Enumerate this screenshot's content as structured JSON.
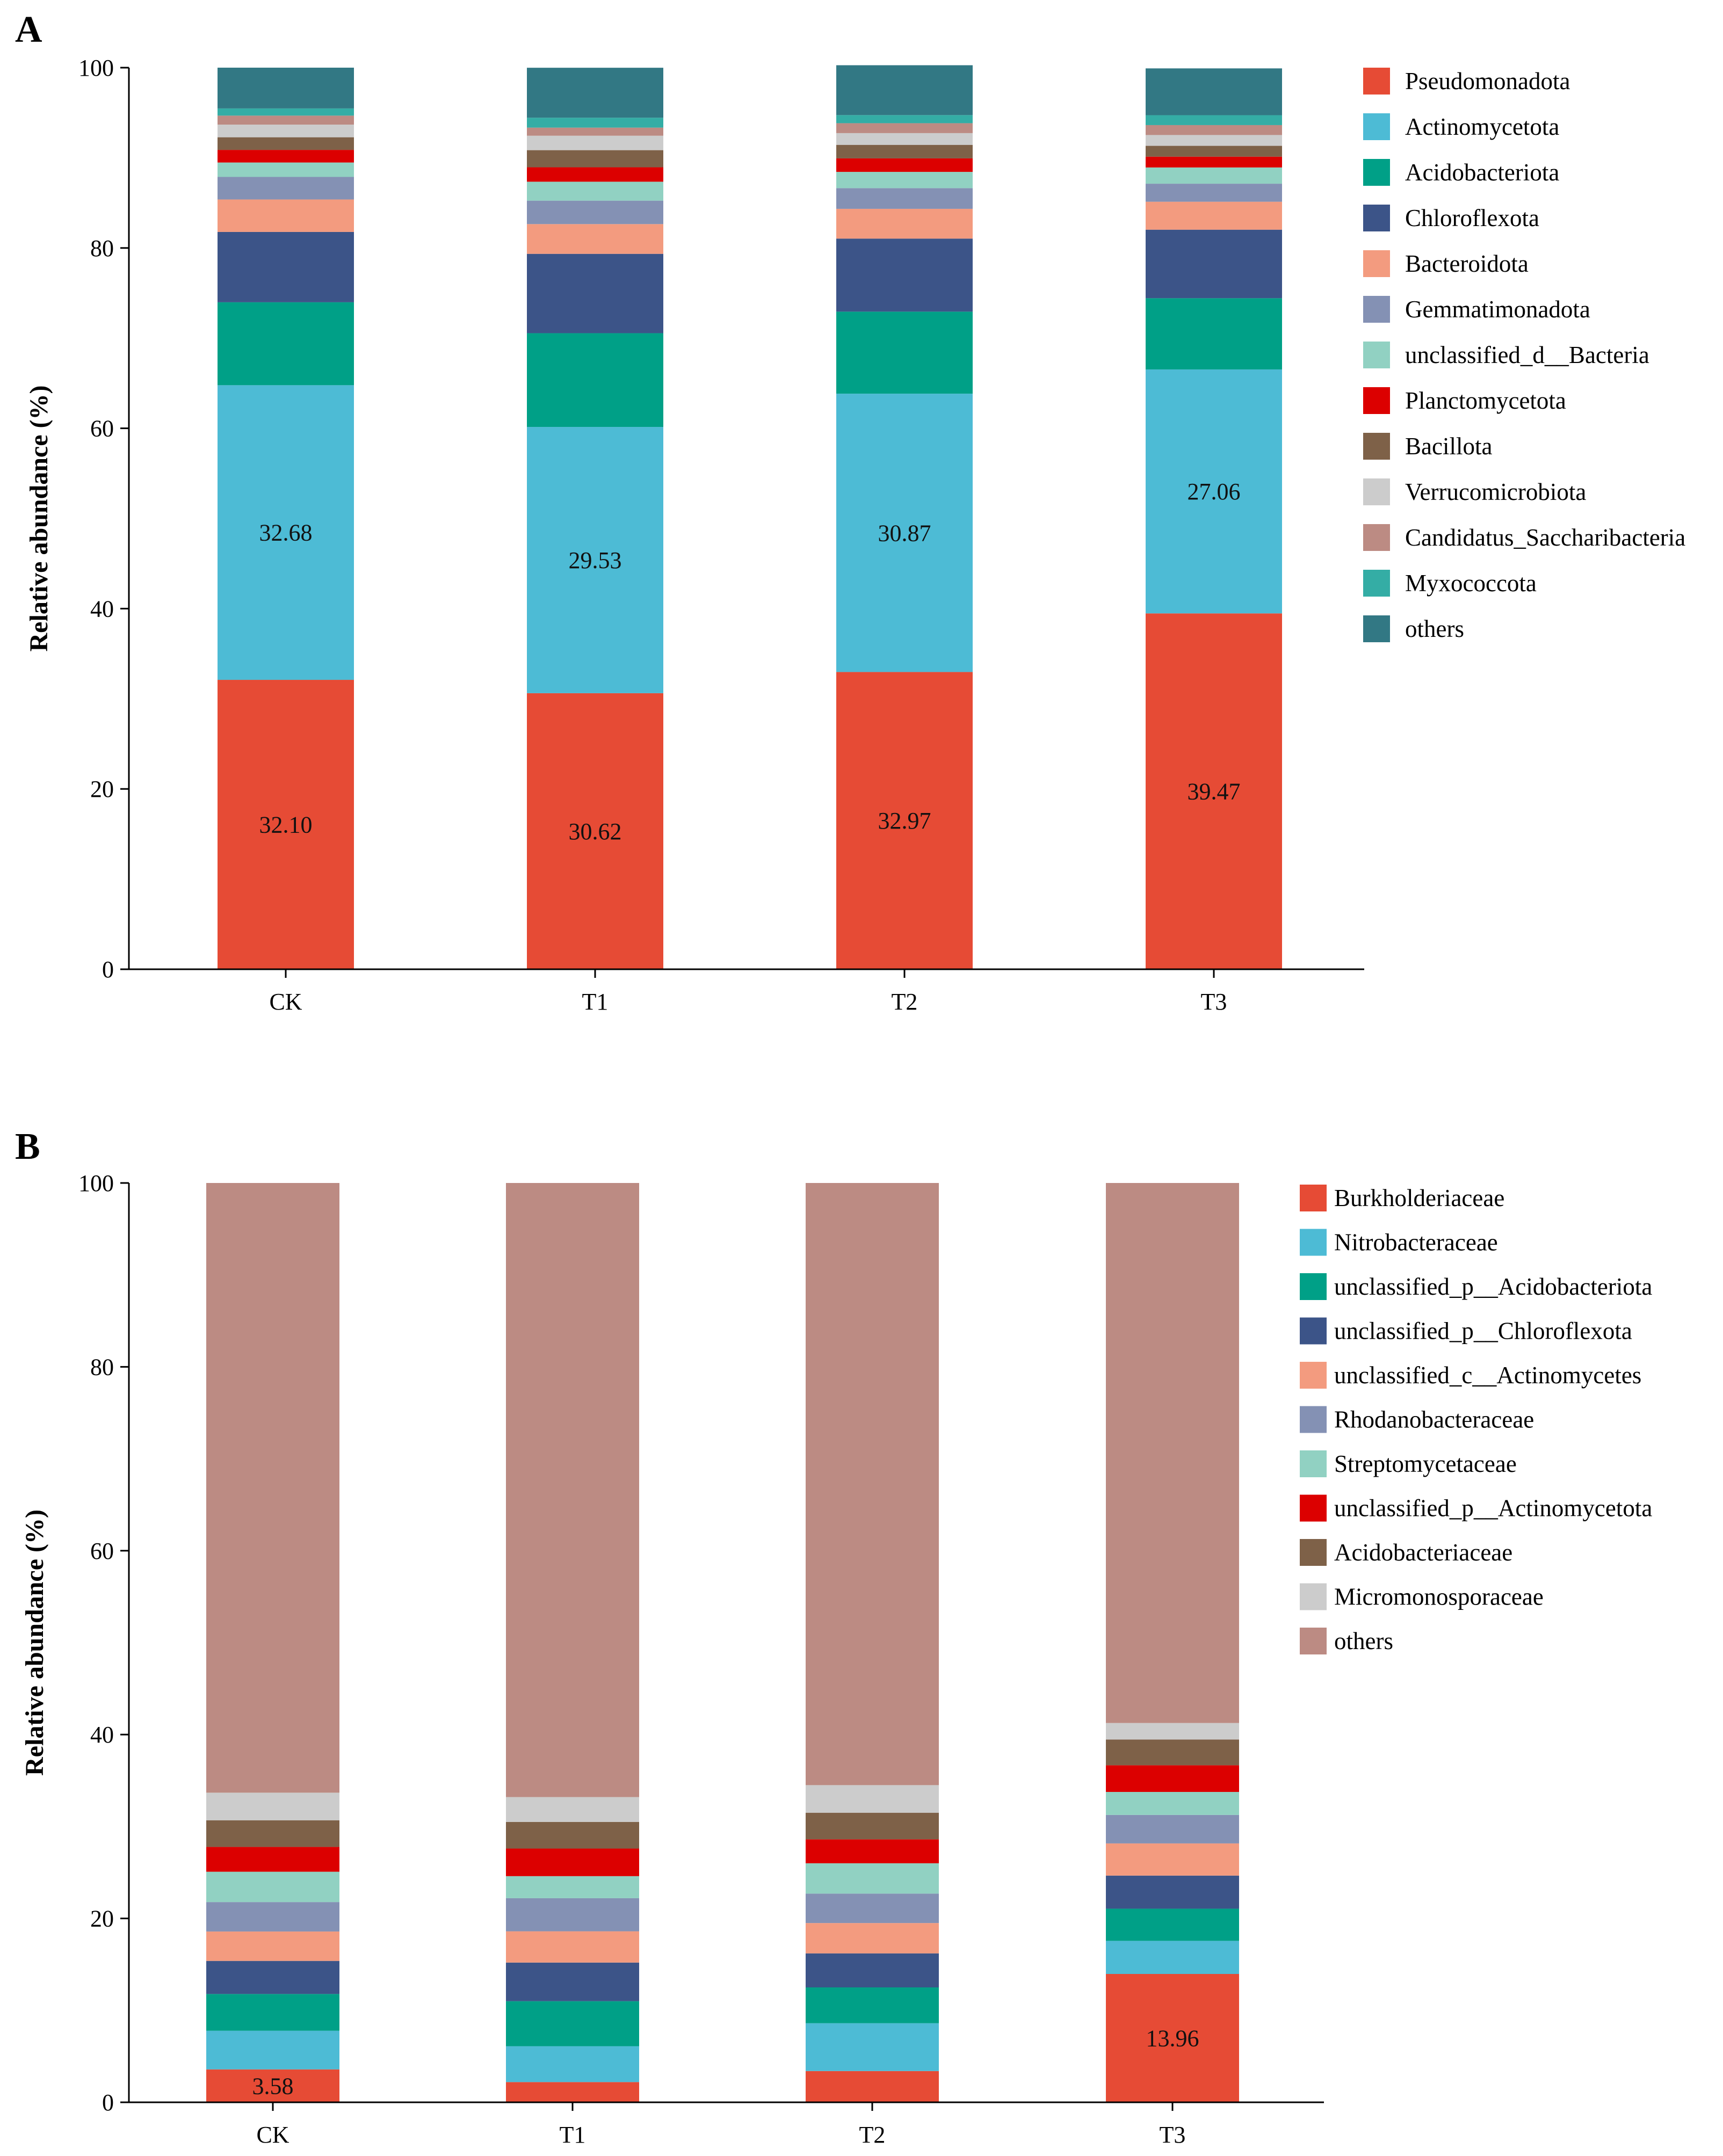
{
  "chart_data": [
    {
      "panel": "A",
      "type": "bar",
      "stacked": true,
      "ylabel": "Relative abundance (%)",
      "xlabel": "",
      "ylim": [
        0,
        100
      ],
      "yticks": [
        0,
        20,
        40,
        60,
        80,
        100
      ],
      "categories": [
        "CK",
        "T1",
        "T2",
        "T3"
      ],
      "legend_position": "right",
      "series": [
        {
          "name": "Pseudomonadota",
          "color": "#E64B35",
          "values": [
            32.1,
            30.62,
            32.97,
            39.47
          ],
          "labels": [
            "32.10",
            "30.62",
            "32.97",
            "39.47"
          ]
        },
        {
          "name": "Actinomycetota",
          "color": "#4DBBD5",
          "values": [
            32.68,
            29.53,
            30.87,
            27.06
          ],
          "labels": [
            "32.68",
            "29.53",
            "30.87",
            "27.06"
          ]
        },
        {
          "name": "Acidobacteriota",
          "color": "#00A087",
          "values": [
            9.2,
            10.4,
            9.1,
            7.9
          ]
        },
        {
          "name": "Chloroflexota",
          "color": "#3C5488",
          "values": [
            7.8,
            8.8,
            8.1,
            7.6
          ]
        },
        {
          "name": "Bacteroidota",
          "color": "#F39B7F",
          "values": [
            3.6,
            3.3,
            3.3,
            3.1
          ]
        },
        {
          "name": "Gemmatimonadota",
          "color": "#8491B4",
          "values": [
            2.5,
            2.6,
            2.3,
            2.0
          ]
        },
        {
          "name": "unclassified_d__Bacteria",
          "color": "#91D1C2",
          "values": [
            1.6,
            2.1,
            1.8,
            1.8
          ]
        },
        {
          "name": "Planctomycetota",
          "color": "#DC0000",
          "values": [
            1.4,
            1.6,
            1.5,
            1.2
          ]
        },
        {
          "name": "Bacillota",
          "color": "#7E6148",
          "values": [
            1.4,
            1.9,
            1.5,
            1.2
          ]
        },
        {
          "name": "Verrucomicrobiota",
          "color": "#CCCCCC",
          "values": [
            1.4,
            1.6,
            1.3,
            1.2
          ]
        },
        {
          "name": "Candidatus_Saccharibacteria",
          "color": "#BC8B83",
          "values": [
            1.0,
            0.9,
            1.1,
            1.1
          ]
        },
        {
          "name": "Myxococcota",
          "color": "#34ADA5",
          "values": [
            0.8,
            1.1,
            0.9,
            1.1
          ]
        },
        {
          "name": "others",
          "color": "#327884",
          "values": [
            4.52,
            5.54,
            5.53,
            5.19
          ]
        }
      ]
    },
    {
      "panel": "B",
      "type": "bar",
      "stacked": true,
      "ylabel": "Relative abundance (%)",
      "xlabel": "",
      "ylim": [
        0,
        100
      ],
      "yticks": [
        0,
        20,
        40,
        60,
        80,
        100
      ],
      "categories": [
        "CK",
        "T1",
        "T2",
        "T3"
      ],
      "legend_position": "right",
      "series": [
        {
          "name": "Burkholderiaceae",
          "color": "#E64B35",
          "values": [
            3.58,
            2.2,
            3.4,
            13.96
          ],
          "labels": [
            "3.58",
            "",
            "",
            "13.96"
          ]
        },
        {
          "name": "Nitrobacteraceae",
          "color": "#4DBBD5",
          "values": [
            4.2,
            3.9,
            5.2,
            3.6
          ]
        },
        {
          "name": "unclassified_p__Acidobacteriota",
          "color": "#00A087",
          "values": [
            4.0,
            4.9,
            3.9,
            3.5
          ]
        },
        {
          "name": "unclassified_p__Chloroflexota",
          "color": "#3C5488",
          "values": [
            3.6,
            4.2,
            3.7,
            3.6
          ]
        },
        {
          "name": "unclassified_c__Actinomycetes",
          "color": "#F39B7F",
          "values": [
            3.2,
            3.4,
            3.3,
            3.5
          ]
        },
        {
          "name": "Rhodanobacteraceae",
          "color": "#8491B4",
          "values": [
            3.2,
            3.6,
            3.2,
            3.1
          ]
        },
        {
          "name": "Streptomycetaceae",
          "color": "#91D1C2",
          "values": [
            3.3,
            2.4,
            3.3,
            2.5
          ]
        },
        {
          "name": "unclassified_p__Actinomycetota",
          "color": "#DC0000",
          "values": [
            2.7,
            3.0,
            2.6,
            2.9
          ]
        },
        {
          "name": "Acidobacteriaceae",
          "color": "#7E6148",
          "values": [
            2.9,
            2.9,
            2.9,
            2.8
          ]
        },
        {
          "name": "Micromonosporaceae",
          "color": "#CCCCCC",
          "values": [
            3.0,
            2.7,
            3.0,
            1.8
          ]
        },
        {
          "name": "others",
          "color": "#BC8B83",
          "values": [
            66.32,
            66.8,
            65.5,
            58.74
          ]
        }
      ]
    }
  ]
}
